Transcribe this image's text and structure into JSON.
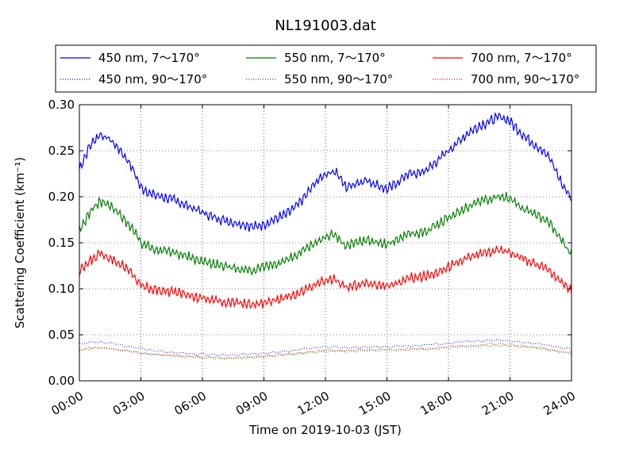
{
  "chart_data": {
    "type": "line",
    "title": "NL191003.dat",
    "xlabel": "Time on 2019-10-03 (JST)",
    "ylabel": "Scattering Coefficient (km⁻¹)",
    "xlim": [
      0,
      24
    ],
    "ylim": [
      0,
      0.3
    ],
    "x_tick_values": [
      0,
      3,
      6,
      9,
      12,
      15,
      18,
      21,
      24
    ],
    "x_tick_labels": [
      "00:00",
      "03:00",
      "06:00",
      "09:00",
      "12:00",
      "15:00",
      "18:00",
      "21:00",
      "24:00"
    ],
    "y_ticks": [
      "0.00",
      "0.05",
      "0.10",
      "0.15",
      "0.20",
      "0.25",
      "0.30"
    ],
    "grid": true,
    "legend_position": "top, above plot, 3 columns",
    "x": [
      0,
      0.5,
      1,
      1.5,
      2,
      2.5,
      3,
      3.5,
      4,
      4.5,
      5,
      5.5,
      6,
      6.5,
      7,
      7.5,
      8,
      8.5,
      9,
      9.5,
      10,
      10.5,
      11,
      11.5,
      12,
      12.5,
      13,
      13.5,
      14,
      14.5,
      15,
      15.5,
      16,
      16.5,
      17,
      17.5,
      18,
      18.5,
      19,
      19.5,
      20,
      20.5,
      21,
      21.5,
      22,
      22.5,
      23,
      23.5,
      24
    ],
    "series": [
      {
        "name": "450 nm, 7～170°",
        "color": "#0000ff",
        "style": "solid",
        "values": [
          0.23,
          0.255,
          0.268,
          0.262,
          0.25,
          0.235,
          0.21,
          0.203,
          0.2,
          0.197,
          0.193,
          0.188,
          0.183,
          0.178,
          0.175,
          0.172,
          0.17,
          0.167,
          0.17,
          0.175,
          0.18,
          0.188,
          0.2,
          0.215,
          0.225,
          0.228,
          0.21,
          0.215,
          0.218,
          0.213,
          0.208,
          0.215,
          0.225,
          0.225,
          0.23,
          0.24,
          0.25,
          0.26,
          0.27,
          0.277,
          0.282,
          0.287,
          0.282,
          0.27,
          0.26,
          0.252,
          0.24,
          0.215,
          0.198
        ]
      },
      {
        "name": "450 nm, 90～170°",
        "color": "#0000ff",
        "style": "dotted",
        "values": [
          0.04,
          0.042,
          0.042,
          0.041,
          0.039,
          0.037,
          0.035,
          0.033,
          0.032,
          0.031,
          0.03,
          0.029,
          0.029,
          0.028,
          0.028,
          0.028,
          0.029,
          0.029,
          0.03,
          0.031,
          0.032,
          0.033,
          0.035,
          0.036,
          0.037,
          0.037,
          0.036,
          0.036,
          0.037,
          0.037,
          0.037,
          0.038,
          0.038,
          0.038,
          0.039,
          0.04,
          0.041,
          0.042,
          0.043,
          0.043,
          0.044,
          0.044,
          0.043,
          0.042,
          0.041,
          0.04,
          0.038,
          0.036,
          0.035
        ]
      },
      {
        "name": "550 nm, 7～170°",
        "color": "#008000",
        "style": "solid",
        "values": [
          0.163,
          0.183,
          0.195,
          0.19,
          0.18,
          0.168,
          0.15,
          0.145,
          0.142,
          0.14,
          0.137,
          0.133,
          0.13,
          0.128,
          0.125,
          0.123,
          0.121,
          0.12,
          0.123,
          0.127,
          0.13,
          0.135,
          0.142,
          0.15,
          0.157,
          0.158,
          0.146,
          0.15,
          0.153,
          0.151,
          0.148,
          0.153,
          0.16,
          0.16,
          0.163,
          0.17,
          0.177,
          0.183,
          0.19,
          0.195,
          0.198,
          0.201,
          0.198,
          0.19,
          0.183,
          0.178,
          0.17,
          0.152,
          0.138
        ]
      },
      {
        "name": "550 nm, 90～170°",
        "color": "#008000",
        "style": "dotted",
        "values": [
          0.034,
          0.036,
          0.036,
          0.035,
          0.033,
          0.032,
          0.03,
          0.029,
          0.028,
          0.027,
          0.026,
          0.026,
          0.025,
          0.025,
          0.024,
          0.024,
          0.025,
          0.025,
          0.026,
          0.027,
          0.028,
          0.029,
          0.03,
          0.031,
          0.032,
          0.032,
          0.032,
          0.032,
          0.033,
          0.033,
          0.033,
          0.033,
          0.034,
          0.034,
          0.034,
          0.035,
          0.036,
          0.037,
          0.037,
          0.038,
          0.038,
          0.038,
          0.038,
          0.037,
          0.036,
          0.035,
          0.033,
          0.031,
          0.03
        ]
      },
      {
        "name": "700 nm, 7～170°",
        "color": "#ff0000",
        "style": "solid",
        "values": [
          0.118,
          0.13,
          0.138,
          0.134,
          0.127,
          0.118,
          0.104,
          0.1,
          0.098,
          0.097,
          0.095,
          0.092,
          0.09,
          0.088,
          0.086,
          0.085,
          0.084,
          0.083,
          0.085,
          0.088,
          0.09,
          0.093,
          0.098,
          0.104,
          0.109,
          0.11,
          0.101,
          0.104,
          0.106,
          0.105,
          0.103,
          0.106,
          0.111,
          0.112,
          0.114,
          0.119,
          0.124,
          0.129,
          0.134,
          0.138,
          0.14,
          0.142,
          0.14,
          0.134,
          0.129,
          0.125,
          0.119,
          0.107,
          0.098
        ]
      },
      {
        "name": "700 nm, 90～170°",
        "color": "#ff0000",
        "style": "dotted",
        "values": [
          0.033,
          0.035,
          0.036,
          0.035,
          0.033,
          0.032,
          0.03,
          0.029,
          0.028,
          0.028,
          0.027,
          0.027,
          0.026,
          0.026,
          0.025,
          0.025,
          0.026,
          0.026,
          0.027,
          0.028,
          0.029,
          0.03,
          0.031,
          0.032,
          0.033,
          0.033,
          0.033,
          0.033,
          0.034,
          0.034,
          0.034,
          0.034,
          0.035,
          0.035,
          0.035,
          0.036,
          0.037,
          0.038,
          0.038,
          0.039,
          0.04,
          0.04,
          0.039,
          0.038,
          0.037,
          0.036,
          0.034,
          0.032,
          0.031
        ]
      }
    ]
  }
}
